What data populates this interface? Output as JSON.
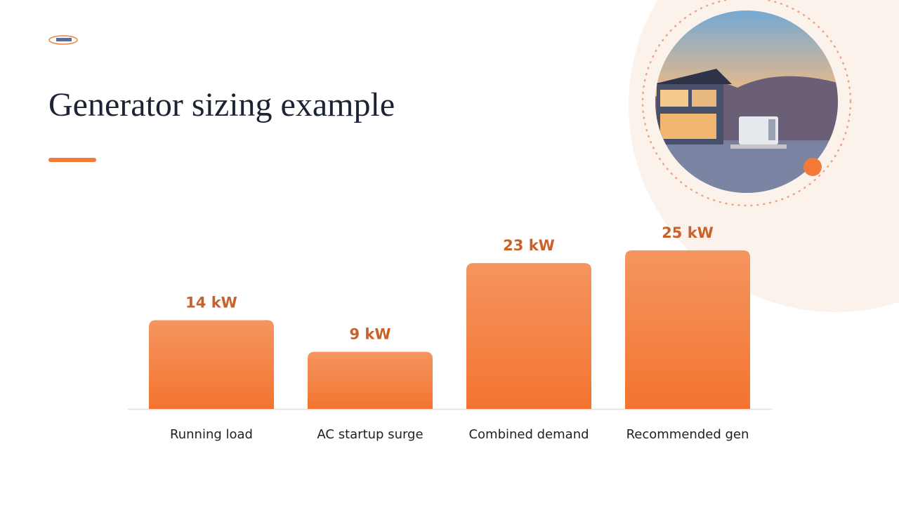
{
  "chart_data": {
    "type": "bar",
    "title": "Generator sizing example",
    "categories": [
      "Running load",
      "AC startup surge",
      "Combined demand",
      "Recommended gen"
    ],
    "values": [
      14,
      9,
      23,
      25
    ],
    "value_labels": [
      "14 kW",
      "9 kW",
      "23 kW",
      "25 kW"
    ],
    "color": "#f37a38"
  }
}
